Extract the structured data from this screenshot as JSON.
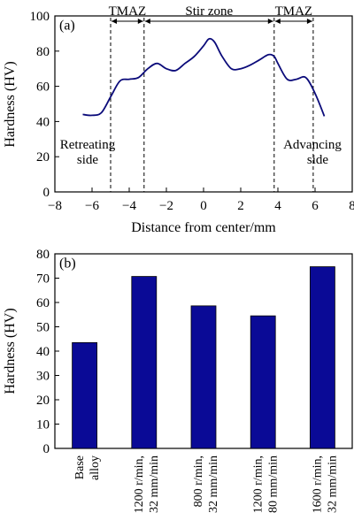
{
  "colors": {
    "line": "#0b0b7a",
    "bar": "#0a0a96",
    "axis": "#000000"
  },
  "chart_data": [
    {
      "type": "line",
      "panel_label": "(a)",
      "xlabel": "Distance from center/mm",
      "ylabel": "Hardness (HV)",
      "xlim": [
        -8,
        8
      ],
      "ylim": [
        0,
        100
      ],
      "xticks": [
        -8,
        -6,
        -4,
        -2,
        0,
        2,
        4,
        6,
        8
      ],
      "yticks": [
        0,
        20,
        40,
        60,
        80,
        100
      ],
      "series": [
        {
          "x": [
            -6.5,
            -6.0,
            -5.5,
            -5.0,
            -4.5,
            -4.0,
            -3.5,
            -3.0,
            -2.5,
            -2.0,
            -1.5,
            -1.0,
            -0.5,
            0.0,
            0.3,
            0.6,
            1.0,
            1.5,
            2.0,
            2.5,
            3.0,
            3.5,
            3.8,
            4.0,
            4.5,
            5.0,
            5.5,
            6.0,
            6.5
          ],
          "y": [
            44,
            43.5,
            45,
            54,
            63,
            64,
            65,
            70,
            73,
            70,
            69,
            73,
            77,
            83,
            87,
            85,
            77,
            70,
            70,
            72,
            75,
            78,
            77,
            73,
            64,
            64,
            65,
            56,
            43
          ]
        }
      ],
      "vlines": [
        -5,
        -3.2,
        3.8,
        5.9
      ],
      "zones": [
        {
          "label": "TMAZ",
          "from": -5,
          "to": -3.2
        },
        {
          "label": "Stir zone",
          "from": -3.2,
          "to": 3.8
        },
        {
          "label": "TMAZ",
          "from": 3.8,
          "to": 5.9
        }
      ],
      "side_labels": {
        "left": [
          "Retreating",
          "side"
        ],
        "right": [
          "Advancing",
          "side"
        ]
      },
      "grid": false
    },
    {
      "type": "bar",
      "panel_label": "(b)",
      "ylabel": "Hardness (HV)",
      "ylim": [
        0,
        80
      ],
      "yticks": [
        0,
        10,
        20,
        30,
        40,
        50,
        60,
        70,
        80
      ],
      "categories": [
        [
          "Base",
          "alloy"
        ],
        [
          "1200 r/min,",
          "32 mm/min"
        ],
        [
          "800 r/min,",
          "32 mm/min"
        ],
        [
          "1200 r/min,",
          "80 mm/min"
        ],
        [
          "1600 r/min,",
          "32 mm/min"
        ]
      ],
      "values": [
        43.5,
        70.7,
        58.6,
        54.5,
        74.7
      ],
      "grid": false
    }
  ]
}
